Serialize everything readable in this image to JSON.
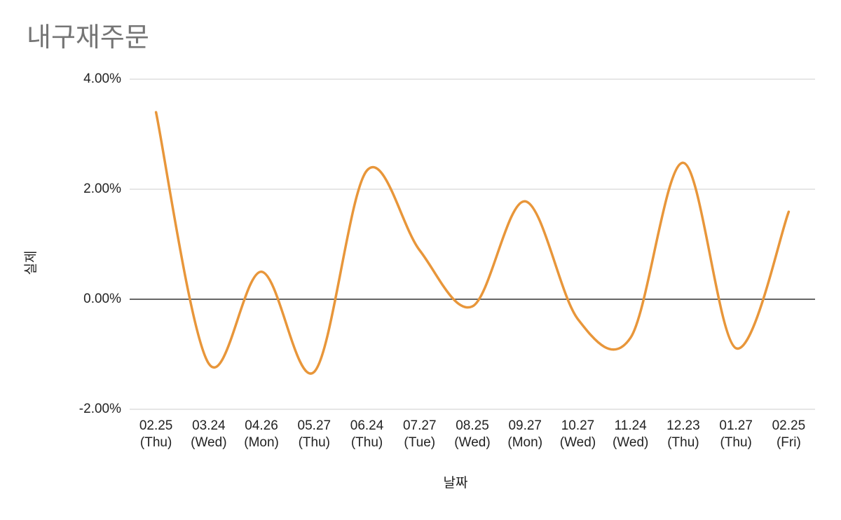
{
  "chart_data": {
    "type": "line",
    "title": "내구재주문",
    "x_label": "날짜",
    "y_label": "실제",
    "categories": [
      "02.25\n(Thu)",
      "03.24\n(Wed)",
      "04.26\n(Mon)",
      "05.27\n(Thu)",
      "06.24\n(Thu)",
      "07.27\n(Tue)",
      "08.25\n(Wed)",
      "09.27\n(Mon)",
      "10.27\n(Wed)",
      "11.24\n(Wed)",
      "12.23\n(Thu)",
      "01.27\n(Thu)",
      "02.25\n(Fri)"
    ],
    "series": [
      {
        "name": "실제",
        "color": "#e8963a",
        "values": [
          3.4,
          -1.17,
          0.5,
          -1.32,
          2.34,
          0.89,
          -0.13,
          1.78,
          -0.36,
          -0.7,
          2.48,
          -0.89,
          1.59
        ]
      }
    ],
    "ylim": [
      -2,
      4
    ],
    "yticks": [
      {
        "value": -2,
        "label": "-2.00%"
      },
      {
        "value": 0,
        "label": "0.00%"
      },
      {
        "value": 2,
        "label": "2.00%"
      },
      {
        "value": 4,
        "label": "4.00%"
      }
    ],
    "grid": true,
    "smooth": true
  }
}
